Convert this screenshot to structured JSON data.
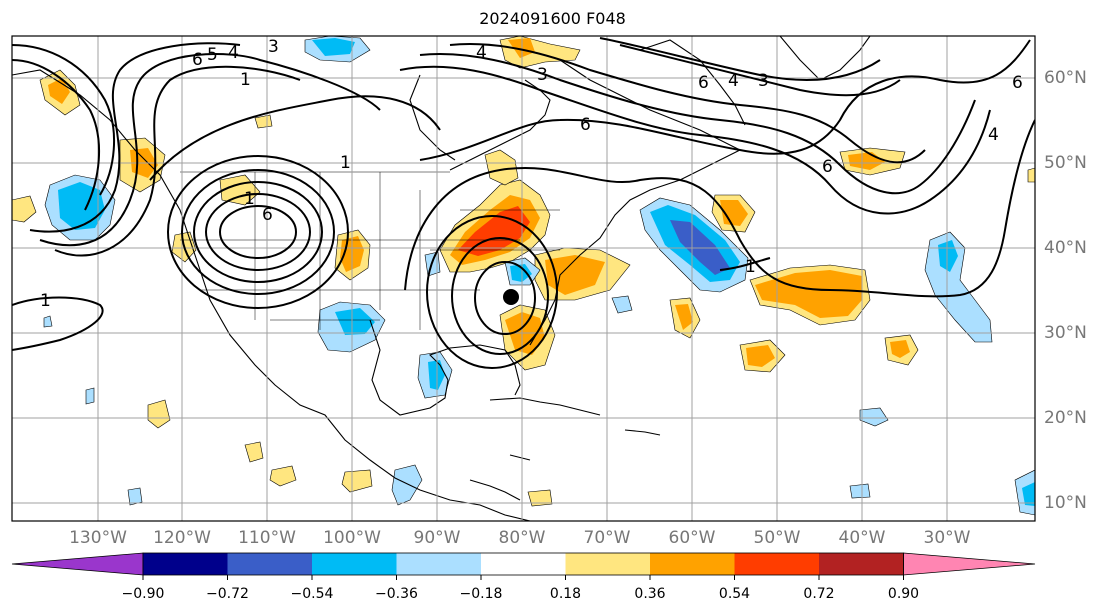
{
  "title": "2024091600 F048",
  "longitude_labels": [
    "130°W",
    "120°W",
    "110°W",
    "100°W",
    "90°W",
    "80°W",
    "70°W",
    "60°W",
    "50°W",
    "40°W",
    "30°W"
  ],
  "latitude_labels": [
    "60°N",
    "50°N",
    "40°N",
    "30°N",
    "20°N",
    "10°N"
  ],
  "contour_labels": [
    "6",
    "5",
    "4",
    "3",
    "1",
    "1",
    "6",
    "1",
    "4",
    "3",
    "6",
    "4",
    "3",
    "6",
    "6",
    "4",
    "1",
    "6",
    "1"
  ],
  "colorbar": {
    "tick_labels": [
      "−0.90",
      "−0.72",
      "−0.54",
      "−0.36",
      "−0.18",
      "0.18",
      "0.36",
      "0.54",
      "0.72",
      "0.90"
    ],
    "colors": [
      "#9a36cc",
      "#00008b",
      "#3a5ec8",
      "#00bbf5",
      "#abdfff",
      "#ffffff",
      "#ffe680",
      "#ffa200",
      "#ff3d00",
      "#b22222",
      "#ff85b2"
    ],
    "extend": "both"
  },
  "colors": {
    "coast": "#000000",
    "grid": "#a0a0a0",
    "contour": "#000000"
  }
}
